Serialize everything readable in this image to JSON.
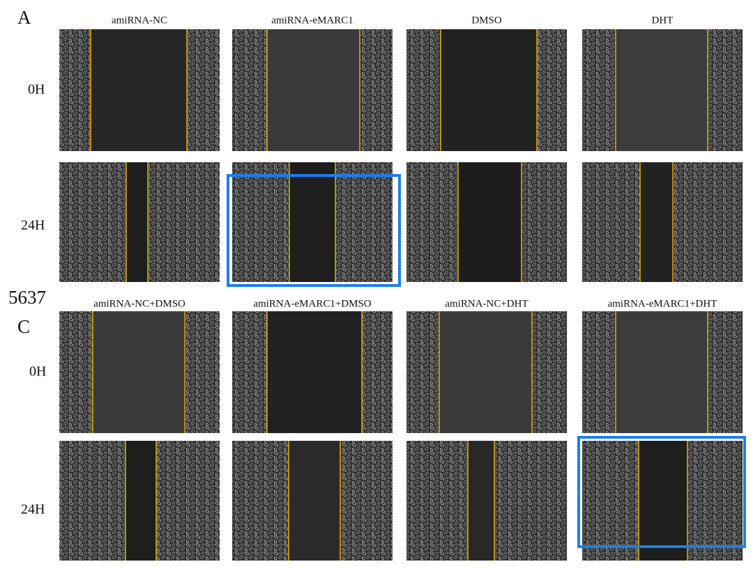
{
  "cell_line": "5637",
  "panels": [
    {
      "label": "A",
      "columns": [
        "amiRNA-NC",
        "amiRNA-eMARC1",
        "DMSO",
        "DHT"
      ],
      "rows": [
        "0H",
        "24H"
      ]
    },
    {
      "label": "C",
      "columns": [
        "amiRNA-NC+DMSO",
        "amiRNA-eMARC1+DMSO",
        "amiRNA-NC+DHT",
        "amiRNA-eMARC1+DHT"
      ],
      "rows": [
        "0H",
        "24H"
      ]
    }
  ]
}
